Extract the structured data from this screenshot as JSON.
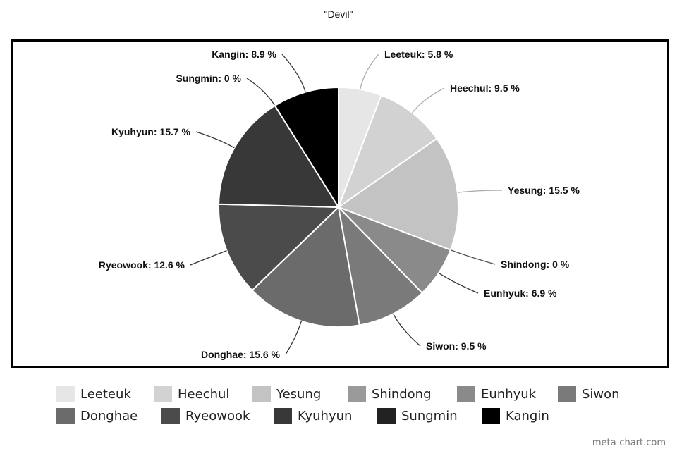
{
  "chart_data": {
    "type": "pie",
    "title": "\"Devil\"",
    "legend_position": "bottom",
    "slices": [
      {
        "label": "Leeteuk",
        "value": 5.8,
        "display": "Leeteuk: 5.8 %",
        "color": "#e6e6e6"
      },
      {
        "label": "Heechul",
        "value": 9.5,
        "display": "Heechul: 9.5 %",
        "color": "#d2d2d2"
      },
      {
        "label": "Yesung",
        "value": 15.5,
        "display": "Yesung: 15.5 %",
        "color": "#c3c3c3"
      },
      {
        "label": "Shindong",
        "value": 0,
        "display": "Shindong: 0 %",
        "color": "#9a9a9a"
      },
      {
        "label": "Eunhyuk",
        "value": 6.9,
        "display": "Eunhyuk: 6.9 %",
        "color": "#8a8a8a"
      },
      {
        "label": "Siwon",
        "value": 9.5,
        "display": "Siwon: 9.5 %",
        "color": "#7a7a7a"
      },
      {
        "label": "Donghae",
        "value": 15.6,
        "display": "Donghae: 15.6 %",
        "color": "#6b6b6b"
      },
      {
        "label": "Ryeowook",
        "value": 12.6,
        "display": "Ryeowook: 12.6 %",
        "color": "#4b4b4b"
      },
      {
        "label": "Kyuhyun",
        "value": 15.7,
        "display": "Kyuhyun: 15.7 %",
        "color": "#383838"
      },
      {
        "label": "Sungmin",
        "value": 0,
        "display": "Sungmin: 0 %",
        "color": "#222222"
      },
      {
        "label": "Kangin",
        "value": 8.9,
        "display": "Kangin: 8.9 %",
        "color": "#000000"
      }
    ]
  },
  "watermark": "meta-chart.com"
}
